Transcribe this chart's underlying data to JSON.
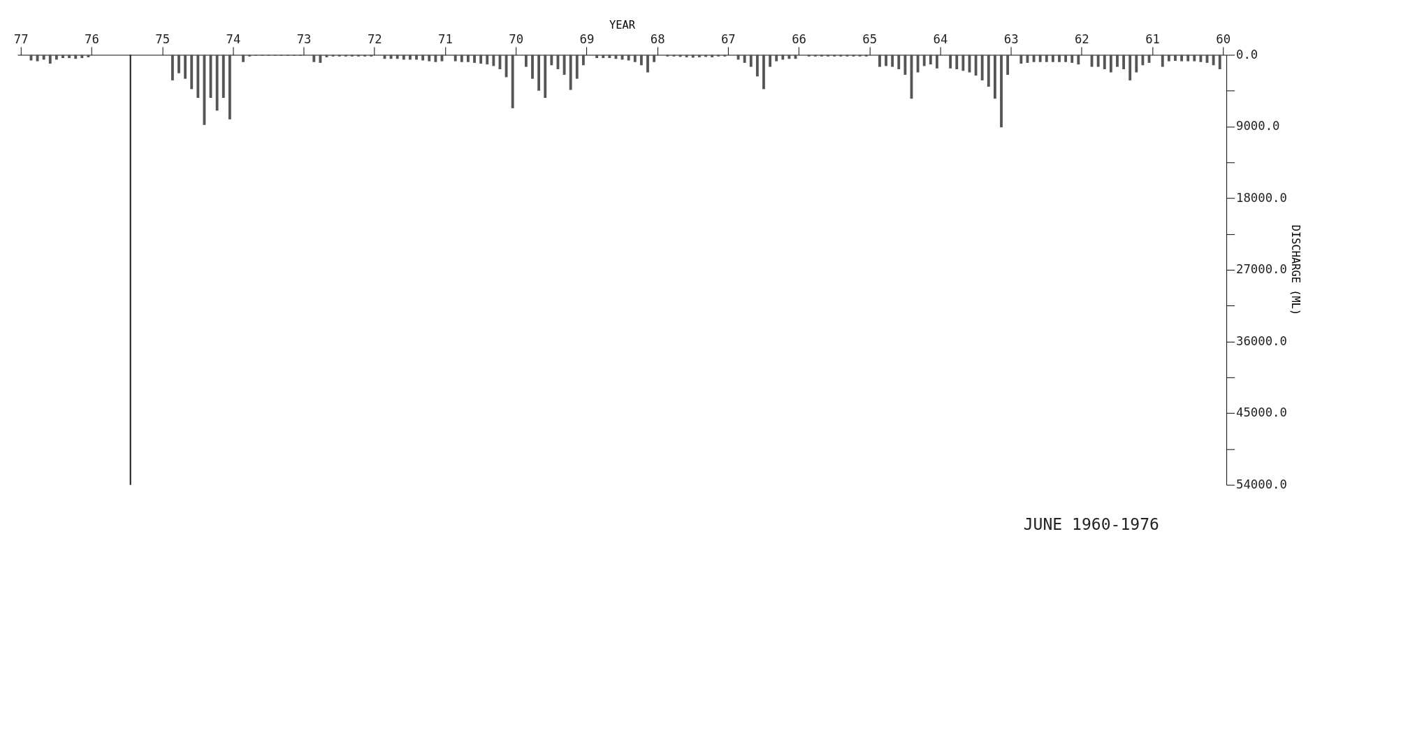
{
  "chart_data": {
    "type": "bar",
    "xlabel": "YEAR",
    "ylabel": "DISCHARGE (ML)",
    "color": "#555555",
    "x": [
      60.045,
      60.135,
      60.225,
      60.315,
      60.405,
      60.495,
      60.585,
      60.675,
      60.765,
      60.855,
      61.045,
      61.135,
      61.225,
      61.315,
      61.405,
      61.495,
      61.585,
      61.675,
      61.765,
      61.855,
      62.045,
      62.135,
      62.225,
      62.315,
      62.405,
      62.495,
      62.585,
      62.675,
      62.765,
      62.855,
      63.045,
      63.135,
      63.225,
      63.315,
      63.405,
      63.495,
      63.585,
      63.675,
      63.765,
      63.855,
      64.045,
      64.135,
      64.225,
      64.315,
      64.405,
      64.495,
      64.585,
      64.675,
      64.765,
      64.855,
      65.045,
      65.135,
      65.225,
      65.315,
      65.405,
      65.495,
      65.585,
      65.675,
      65.765,
      65.855,
      66.045,
      66.135,
      66.225,
      66.315,
      66.405,
      66.495,
      66.585,
      66.675,
      66.765,
      66.855,
      67.045,
      67.135,
      67.225,
      67.315,
      67.405,
      67.495,
      67.585,
      67.675,
      67.765,
      67.855,
      68.045,
      68.135,
      68.225,
      68.315,
      68.405,
      68.495,
      68.585,
      68.675,
      68.765,
      68.855,
      69.045,
      69.135,
      69.225,
      69.315,
      69.405,
      69.495,
      69.585,
      69.675,
      69.765,
      69.855,
      70.045,
      70.135,
      70.225,
      70.315,
      70.405,
      70.495,
      70.585,
      70.675,
      70.765,
      70.855,
      71.045,
      71.135,
      71.225,
      71.315,
      71.405,
      71.495,
      71.585,
      71.675,
      71.765,
      71.855,
      72.045,
      72.135,
      72.225,
      72.315,
      72.405,
      72.495,
      72.585,
      72.675,
      72.765,
      72.855,
      73.045,
      73.135,
      73.225,
      73.315,
      73.405,
      73.495,
      73.585,
      73.675,
      73.765,
      73.855,
      74.045,
      74.135,
      74.225,
      74.315,
      74.405,
      74.495,
      74.585,
      74.675,
      74.765,
      74.855,
      76.045,
      76.135,
      76.225,
      76.315,
      76.405,
      76.495,
      76.585,
      76.675,
      76.765,
      76.855
    ],
    "values": [
      1800,
      1300,
      1000,
      900,
      800,
      800,
      800,
      750,
      800,
      1500,
      1000,
      1300,
      2200,
      3200,
      1800,
      1500,
      2200,
      1800,
      1500,
      1500,
      1200,
      1000,
      900,
      900,
      900,
      900,
      900,
      900,
      1000,
      1100,
      2500,
      9100,
      5500,
      4000,
      3200,
      2600,
      2200,
      2000,
      1800,
      1700,
      1700,
      1200,
      1400,
      2200,
      5500,
      2500,
      1800,
      1500,
      1400,
      1500,
      200,
      200,
      200,
      200,
      200,
      200,
      200,
      200,
      200,
      200,
      500,
      500,
      600,
      800,
      1500,
      4300,
      2700,
      1500,
      1000,
      600,
      200,
      200,
      300,
      250,
      300,
      350,
      300,
      250,
      200,
      200,
      900,
      2200,
      1300,
      900,
      700,
      600,
      500,
      400,
      400,
      400,
      1300,
      3000,
      4400,
      2500,
      1800,
      1300,
      5400,
      4500,
      3000,
      1500,
      6700,
      2800,
      1800,
      1400,
      1200,
      1100,
      1000,
      900,
      900,
      800,
      800,
      900,
      800,
      700,
      600,
      600,
      600,
      500,
      500,
      500,
      200,
      200,
      200,
      200,
      200,
      200,
      200,
      300,
      1000,
      900,
      100,
      100,
      100,
      100,
      100,
      100,
      100,
      100,
      200,
      900,
      8100,
      5400,
      7000,
      5400,
      8800,
      5400,
      4300,
      3000,
      2300,
      3200,
      300,
      400,
      500,
      400,
      400,
      600,
      1100,
      600,
      800,
      700
    ],
    "xlim": [
      77,
      60
    ],
    "xticks": [
      60,
      61,
      62,
      63,
      64,
      65,
      66,
      67,
      68,
      69,
      70,
      71,
      72,
      73,
      74,
      75,
      76,
      77
    ],
    "ylim": [
      54000,
      0
    ],
    "yticks": [
      {
        "value": 0,
        "label": "0.0"
      },
      {
        "value": 4500,
        "label": null
      },
      {
        "value": 9000,
        "label": "9000.0"
      },
      {
        "value": 13500,
        "label": null
      },
      {
        "value": 18000,
        "label": "18000.0"
      },
      {
        "value": 22500,
        "label": null
      },
      {
        "value": 27000,
        "label": "27000.0"
      },
      {
        "value": 31500,
        "label": null
      },
      {
        "value": 36000,
        "label": "36000.0"
      },
      {
        "value": 40500,
        "label": null
      },
      {
        "value": 45000,
        "label": "45000.0"
      },
      {
        "value": 49500,
        "label": null
      },
      {
        "value": 54000,
        "label": "54000.0"
      }
    ],
    "ref_lines": [
      {
        "axis": "x",
        "value": 75.45,
        "color": "#111111"
      }
    ],
    "annotations": [
      "JUNE 1960-1976"
    ],
    "grid": false
  }
}
